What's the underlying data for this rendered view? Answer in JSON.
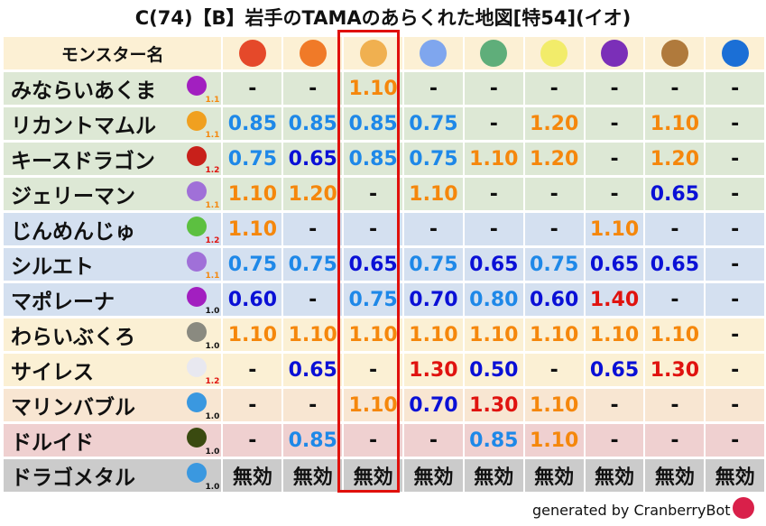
{
  "title": "C(74)【B】岩手のTAMAのあらくれた地図[特54](イオ)",
  "header": {
    "name_col": "モンスター名",
    "elements": [
      {
        "icon": "meteor-icon",
        "color": "#e5492a"
      },
      {
        "icon": "fire-icon",
        "color": "#f07a28"
      },
      {
        "icon": "clover-icon",
        "color": "#f0b050"
      },
      {
        "icon": "ice-icon",
        "color": "#7fa6ee"
      },
      {
        "icon": "tornado-icon",
        "color": "#5fae7a"
      },
      {
        "icon": "light-icon",
        "color": "#f2ec6a"
      },
      {
        "icon": "darkness-icon",
        "color": "#7b2fb8"
      },
      {
        "icon": "earth-icon",
        "color": "#b07a3c"
      },
      {
        "icon": "water-icon",
        "color": "#1b6fd6"
      }
    ]
  },
  "colors": {
    "up": "#f5870c",
    "high": "#e0130f",
    "resist": "#1e88e8",
    "strong": "#0a10d6",
    "immune": "#111111"
  },
  "rows": [
    {
      "name": "みならいあくま",
      "level": "1.1",
      "level_color": "#f5870c",
      "bg": "#dde8d5",
      "icon": "trident-icon",
      "icon_color": "#a21fc0",
      "values": [
        "-",
        "-",
        "1.10",
        "-",
        "-",
        "-",
        "-",
        "-",
        "-"
      ]
    },
    {
      "name": "リカントマムル",
      "level": "1.1",
      "level_color": "#f5870c",
      "bg": "#dde8d5",
      "icon": "paw-icon",
      "icon_color": "#f0a020",
      "values": [
        "0.85",
        "0.85",
        "0.85",
        "0.75",
        "-",
        "1.20",
        "-",
        "1.10",
        "-"
      ]
    },
    {
      "name": "キースドラゴン",
      "level": "1.2",
      "level_color": "#e0130f",
      "bg": "#dde8d5",
      "icon": "dragon-icon",
      "icon_color": "#c8201a",
      "values": [
        "0.75",
        "0.65",
        "0.85",
        "0.75",
        "1.10",
        "1.20",
        "-",
        "1.20",
        "-"
      ]
    },
    {
      "name": "ジェリーマン",
      "level": "1.1",
      "level_color": "#f5870c",
      "bg": "#dde8d5",
      "icon": "ghost-icon",
      "icon_color": "#a070d8",
      "values": [
        "1.10",
        "1.20",
        "-",
        "1.10",
        "-",
        "-",
        "-",
        "0.65",
        "-"
      ]
    },
    {
      "name": "じんめんじゅ",
      "level": "1.2",
      "level_color": "#e0130f",
      "bg": "#d4e0f0",
      "icon": "leaf-icon",
      "icon_color": "#5cc040",
      "values": [
        "1.10",
        "-",
        "-",
        "-",
        "-",
        "-",
        "1.10",
        "-",
        "-"
      ]
    },
    {
      "name": "シルエト",
      "level": "1.1",
      "level_color": "#f5870c",
      "bg": "#d4e0f0",
      "icon": "ghost-icon",
      "icon_color": "#a070d8",
      "values": [
        "0.75",
        "0.75",
        "0.65",
        "0.75",
        "0.65",
        "0.75",
        "0.65",
        "0.65",
        "-"
      ]
    },
    {
      "name": "マポレーナ",
      "level": "1.0",
      "level_color": "#111111",
      "bg": "#d4e0f0",
      "icon": "trident-icon",
      "icon_color": "#a21fc0",
      "values": [
        "0.60",
        "-",
        "0.75",
        "0.70",
        "0.80",
        "0.60",
        "1.40",
        "-",
        "-"
      ]
    },
    {
      "name": "わらいぶくろ",
      "level": "1.0",
      "level_color": "#111111",
      "bg": "#fbf0d4",
      "icon": "wall-icon",
      "icon_color": "#8a8a80",
      "values": [
        "1.10",
        "1.10",
        "1.10",
        "1.10",
        "1.10",
        "1.10",
        "1.10",
        "1.10",
        "-"
      ]
    },
    {
      "name": "サイレス",
      "level": "1.2",
      "level_color": "#e0130f",
      "bg": "#fbf0d4",
      "icon": "wing-icon",
      "icon_color": "#e8e8f0",
      "values": [
        "-",
        "0.65",
        "-",
        "1.30",
        "0.50",
        "-",
        "0.65",
        "1.30",
        "-"
      ]
    },
    {
      "name": "マリンバブル",
      "level": "1.0",
      "level_color": "#111111",
      "bg": "#f8e6d2",
      "icon": "slime-icon",
      "icon_color": "#3a98e0",
      "values": [
        "-",
        "-",
        "1.10",
        "0.70",
        "1.30",
        "1.10",
        "-",
        "-",
        "-"
      ]
    },
    {
      "name": "ドルイド",
      "level": "1.0",
      "level_color": "#111111",
      "bg": "#efd0d0",
      "icon": "druid-icon",
      "icon_color": "#3a4a10",
      "values": [
        "-",
        "0.85",
        "-",
        "-",
        "0.85",
        "1.10",
        "-",
        "-",
        "-"
      ]
    },
    {
      "name": "ドラゴメタル",
      "level": "1.0",
      "level_color": "#111111",
      "bg": "#cbcbcb",
      "icon": "slime-icon",
      "icon_color": "#3a98e0",
      "values": [
        "無効",
        "無効",
        "無効",
        "無効",
        "無効",
        "無効",
        "無効",
        "無効",
        "無効"
      ]
    }
  ],
  "footer": "generated by CranberryBot"
}
